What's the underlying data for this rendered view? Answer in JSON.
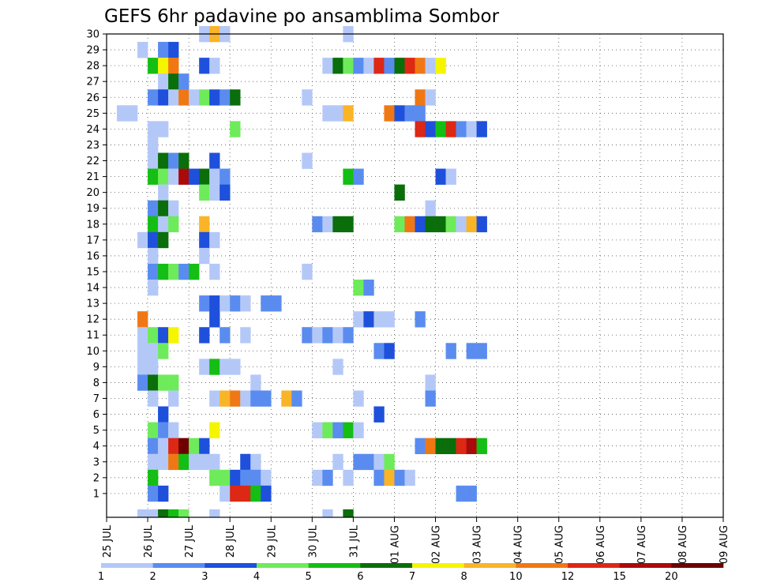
{
  "chart_data": {
    "type": "heatmap",
    "title": "GEFS 6hr padavine po ansamblima Sombor",
    "xlabel": "",
    "ylabel": "",
    "x_tick_labels": [
      "25 JUL",
      "26 JUL",
      "27 JUL",
      "28 JUL",
      "29 JUL",
      "30 JUL",
      "31 JUL",
      "01 AUG",
      "02 AUG",
      "03 AUG",
      "04 AUG",
      "05 AUG",
      "06 AUG",
      "07 AUG",
      "08 AUG",
      "09 AUG"
    ],
    "y_tick_labels": [
      "1",
      "2",
      "3",
      "4",
      "5",
      "6",
      "7",
      "8",
      "9",
      "10",
      "11",
      "12",
      "13",
      "14",
      "15",
      "16",
      "17",
      "18",
      "19",
      "20",
      "21",
      "22",
      "23",
      "24",
      "25",
      "26",
      "27",
      "28",
      "29",
      "30"
    ],
    "ylim": [
      0,
      30
    ],
    "x_step_hours": 6,
    "grid": true,
    "colorbar": {
      "labels": [
        "1",
        "2",
        "3",
        "4",
        "5",
        "6",
        "7",
        "8",
        "10",
        "12",
        "15",
        "20"
      ],
      "colors": [
        "#b4c8f8",
        "#5a8cf0",
        "#1e50dc",
        "#6eeb5a",
        "#14be14",
        "#0a6e0a",
        "#f5f500",
        "#fab428",
        "#f07814",
        "#dc2814",
        "#aa0a0a",
        "#6e0000"
      ]
    },
    "cells": [
      [
        9,
        30,
        1
      ],
      [
        10,
        30,
        8
      ],
      [
        11,
        30,
        1
      ],
      [
        23,
        30,
        1
      ],
      [
        3,
        29,
        1
      ],
      [
        5,
        29,
        2
      ],
      [
        6,
        29,
        3
      ],
      [
        4,
        28,
        5
      ],
      [
        5,
        28,
        7
      ],
      [
        6,
        28,
        10
      ],
      [
        9,
        28,
        3
      ],
      [
        10,
        28,
        1
      ],
      [
        21,
        28,
        1
      ],
      [
        22,
        28,
        6
      ],
      [
        23,
        28,
        4
      ],
      [
        24,
        28,
        2
      ],
      [
        25,
        28,
        1
      ],
      [
        26,
        28,
        12
      ],
      [
        27,
        28,
        2
      ],
      [
        28,
        28,
        6
      ],
      [
        29,
        28,
        14
      ],
      [
        30,
        28,
        10
      ],
      [
        31,
        28,
        1
      ],
      [
        32,
        28,
        7
      ],
      [
        5,
        27,
        1
      ],
      [
        6,
        27,
        6
      ],
      [
        7,
        27,
        2
      ],
      [
        4,
        26,
        2
      ],
      [
        5,
        26,
        3
      ],
      [
        6,
        26,
        1
      ],
      [
        7,
        26,
        10
      ],
      [
        8,
        26,
        1
      ],
      [
        9,
        26,
        4
      ],
      [
        10,
        26,
        3
      ],
      [
        11,
        26,
        2
      ],
      [
        12,
        26,
        6
      ],
      [
        19,
        26,
        1
      ],
      [
        30,
        26,
        10
      ],
      [
        31,
        26,
        1
      ],
      [
        1,
        25,
        1
      ],
      [
        2,
        25,
        1
      ],
      [
        21,
        25,
        1
      ],
      [
        22,
        25,
        1
      ],
      [
        23,
        25,
        8
      ],
      [
        27,
        25,
        10
      ],
      [
        28,
        25,
        3
      ],
      [
        29,
        25,
        2
      ],
      [
        30,
        25,
        2
      ],
      [
        4,
        24,
        1
      ],
      [
        5,
        24,
        1
      ],
      [
        12,
        24,
        4
      ],
      [
        30,
        24,
        14
      ],
      [
        31,
        24,
        3
      ],
      [
        32,
        24,
        5
      ],
      [
        33,
        24,
        14
      ],
      [
        34,
        24,
        2
      ],
      [
        35,
        24,
        1
      ],
      [
        36,
        24,
        3
      ],
      [
        4,
        23,
        1
      ],
      [
        4,
        22,
        1
      ],
      [
        5,
        22,
        6
      ],
      [
        6,
        22,
        2
      ],
      [
        7,
        22,
        6
      ],
      [
        10,
        22,
        3
      ],
      [
        19,
        22,
        1
      ],
      [
        4,
        21,
        5
      ],
      [
        5,
        21,
        4
      ],
      [
        6,
        21,
        1
      ],
      [
        7,
        21,
        15
      ],
      [
        8,
        21,
        3
      ],
      [
        9,
        21,
        6
      ],
      [
        10,
        21,
        1
      ],
      [
        11,
        21,
        2
      ],
      [
        23,
        21,
        5
      ],
      [
        24,
        21,
        2
      ],
      [
        32,
        21,
        3
      ],
      [
        33,
        21,
        1
      ],
      [
        5,
        20,
        1
      ],
      [
        9,
        20,
        4
      ],
      [
        10,
        20,
        1
      ],
      [
        11,
        20,
        3
      ],
      [
        28,
        20,
        6
      ],
      [
        4,
        19,
        2
      ],
      [
        5,
        19,
        6
      ],
      [
        6,
        19,
        1
      ],
      [
        31,
        19,
        1
      ],
      [
        4,
        18,
        5
      ],
      [
        5,
        18,
        1
      ],
      [
        6,
        18,
        4
      ],
      [
        9,
        18,
        8
      ],
      [
        20,
        18,
        2
      ],
      [
        21,
        18,
        1
      ],
      [
        22,
        18,
        6
      ],
      [
        23,
        18,
        6
      ],
      [
        28,
        18,
        4
      ],
      [
        29,
        18,
        10
      ],
      [
        30,
        18,
        3
      ],
      [
        31,
        18,
        6
      ],
      [
        32,
        18,
        6
      ],
      [
        33,
        18,
        4
      ],
      [
        34,
        18,
        1
      ],
      [
        35,
        18,
        8
      ],
      [
        36,
        18,
        3
      ],
      [
        3,
        17,
        1
      ],
      [
        4,
        17,
        3
      ],
      [
        5,
        17,
        6
      ],
      [
        9,
        17,
        3
      ],
      [
        10,
        17,
        1
      ],
      [
        4,
        16,
        1
      ],
      [
        9,
        16,
        1
      ],
      [
        4,
        15,
        2
      ],
      [
        5,
        15,
        5
      ],
      [
        6,
        15,
        4
      ],
      [
        7,
        15,
        2
      ],
      [
        8,
        15,
        5
      ],
      [
        10,
        15,
        1
      ],
      [
        19,
        15,
        1
      ],
      [
        4,
        14,
        1
      ],
      [
        24,
        14,
        4
      ],
      [
        25,
        14,
        2
      ],
      [
        9,
        13,
        2
      ],
      [
        10,
        13,
        3
      ],
      [
        11,
        13,
        1
      ],
      [
        12,
        13,
        2
      ],
      [
        13,
        13,
        1
      ],
      [
        15,
        13,
        2
      ],
      [
        16,
        13,
        2
      ],
      [
        3,
        12,
        10
      ],
      [
        10,
        12,
        3
      ],
      [
        24,
        12,
        1
      ],
      [
        25,
        12,
        3
      ],
      [
        26,
        12,
        1
      ],
      [
        27,
        12,
        1
      ],
      [
        30,
        12,
        2
      ],
      [
        3,
        11,
        1
      ],
      [
        4,
        11,
        4
      ],
      [
        5,
        11,
        3
      ],
      [
        6,
        11,
        7
      ],
      [
        9,
        11,
        3
      ],
      [
        11,
        11,
        2
      ],
      [
        13,
        11,
        1
      ],
      [
        19,
        11,
        2
      ],
      [
        20,
        11,
        1
      ],
      [
        21,
        11,
        2
      ],
      [
        22,
        11,
        1
      ],
      [
        23,
        11,
        2
      ],
      [
        3,
        10,
        1
      ],
      [
        4,
        10,
        1
      ],
      [
        5,
        10,
        4
      ],
      [
        26,
        10,
        2
      ],
      [
        27,
        10,
        3
      ],
      [
        33,
        10,
        2
      ],
      [
        35,
        10,
        2
      ],
      [
        36,
        10,
        2
      ],
      [
        3,
        9,
        1
      ],
      [
        4,
        9,
        1
      ],
      [
        9,
        9,
        1
      ],
      [
        10,
        9,
        5
      ],
      [
        11,
        9,
        1
      ],
      [
        12,
        9,
        1
      ],
      [
        22,
        9,
        1
      ],
      [
        3,
        8,
        2
      ],
      [
        4,
        8,
        6
      ],
      [
        5,
        8,
        4
      ],
      [
        6,
        8,
        4
      ],
      [
        14,
        8,
        1
      ],
      [
        31,
        8,
        1
      ],
      [
        4,
        7,
        1
      ],
      [
        6,
        7,
        1
      ],
      [
        10,
        7,
        1
      ],
      [
        11,
        7,
        8
      ],
      [
        12,
        7,
        10
      ],
      [
        13,
        7,
        1
      ],
      [
        14,
        7,
        2
      ],
      [
        15,
        7,
        2
      ],
      [
        17,
        7,
        8
      ],
      [
        18,
        7,
        2
      ],
      [
        24,
        7,
        1
      ],
      [
        31,
        7,
        2
      ],
      [
        5,
        6,
        3
      ],
      [
        26,
        6,
        3
      ],
      [
        4,
        5,
        4
      ],
      [
        5,
        5,
        2
      ],
      [
        6,
        5,
        1
      ],
      [
        10,
        5,
        7
      ],
      [
        20,
        5,
        1
      ],
      [
        21,
        5,
        4
      ],
      [
        22,
        5,
        2
      ],
      [
        23,
        5,
        5
      ],
      [
        24,
        5,
        1
      ],
      [
        4,
        4,
        2
      ],
      [
        5,
        4,
        1
      ],
      [
        6,
        4,
        12
      ],
      [
        7,
        4,
        20
      ],
      [
        8,
        4,
        4
      ],
      [
        9,
        4,
        3
      ],
      [
        30,
        4,
        2
      ],
      [
        31,
        4,
        10
      ],
      [
        32,
        4,
        6
      ],
      [
        33,
        4,
        6
      ],
      [
        34,
        4,
        14
      ],
      [
        35,
        4,
        15
      ],
      [
        36,
        4,
        5
      ],
      [
        4,
        3,
        1
      ],
      [
        5,
        3,
        1
      ],
      [
        6,
        3,
        10
      ],
      [
        7,
        3,
        5
      ],
      [
        8,
        3,
        1
      ],
      [
        9,
        3,
        1
      ],
      [
        10,
        3,
        1
      ],
      [
        13,
        3,
        3
      ],
      [
        14,
        3,
        1
      ],
      [
        22,
        3,
        1
      ],
      [
        24,
        3,
        2
      ],
      [
        25,
        3,
        2
      ],
      [
        26,
        3,
        1
      ],
      [
        27,
        3,
        4
      ],
      [
        4,
        2,
        5
      ],
      [
        10,
        2,
        4
      ],
      [
        11,
        2,
        4
      ],
      [
        12,
        2,
        3
      ],
      [
        13,
        2,
        2
      ],
      [
        14,
        2,
        2
      ],
      [
        15,
        2,
        1
      ],
      [
        20,
        2,
        1
      ],
      [
        21,
        2,
        2
      ],
      [
        23,
        2,
        1
      ],
      [
        26,
        2,
        2
      ],
      [
        27,
        2,
        8
      ],
      [
        28,
        2,
        2
      ],
      [
        29,
        2,
        1
      ],
      [
        4,
        1,
        2
      ],
      [
        5,
        1,
        3
      ],
      [
        11,
        1,
        1
      ],
      [
        12,
        1,
        12
      ],
      [
        13,
        1,
        14
      ],
      [
        14,
        1,
        5
      ],
      [
        15,
        1,
        3
      ],
      [
        34,
        1,
        2
      ],
      [
        35,
        1,
        2
      ],
      [
        3,
        0,
        1
      ],
      [
        4,
        0,
        1
      ],
      [
        5,
        0,
        6
      ],
      [
        6,
        0,
        5
      ],
      [
        7,
        0,
        4
      ],
      [
        10,
        0,
        1
      ],
      [
        21,
        0,
        1
      ],
      [
        23,
        0,
        6
      ]
    ]
  }
}
